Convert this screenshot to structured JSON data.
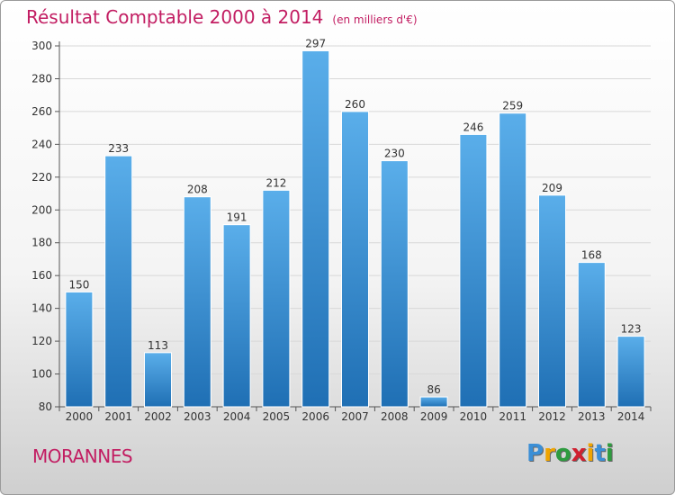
{
  "title": "Résultat Comptable 2000 à 2014",
  "subtitle": "(en milliers d'€)",
  "place": "MORANNES",
  "logo_text": "Proxiti",
  "colors": {
    "title": "#c21d62",
    "bar_top": "#5aaeea",
    "bar_bottom": "#1f6fb4"
  },
  "chart_data": {
    "type": "bar",
    "title": "Résultat Comptable 2000 à 2014",
    "subtitle": "(en milliers d'€)",
    "categories": [
      "2000",
      "2001",
      "2002",
      "2003",
      "2004",
      "2005",
      "2006",
      "2007",
      "2008",
      "2009",
      "2010",
      "2011",
      "2012",
      "2013",
      "2014"
    ],
    "values": [
      150,
      233,
      113,
      208,
      191,
      212,
      297,
      260,
      230,
      86,
      246,
      259,
      209,
      168,
      123
    ],
    "ylim": [
      80,
      300
    ],
    "yticks": [
      80,
      100,
      120,
      140,
      160,
      180,
      200,
      220,
      240,
      260,
      280,
      300
    ],
    "grid": true,
    "legend": "none"
  }
}
